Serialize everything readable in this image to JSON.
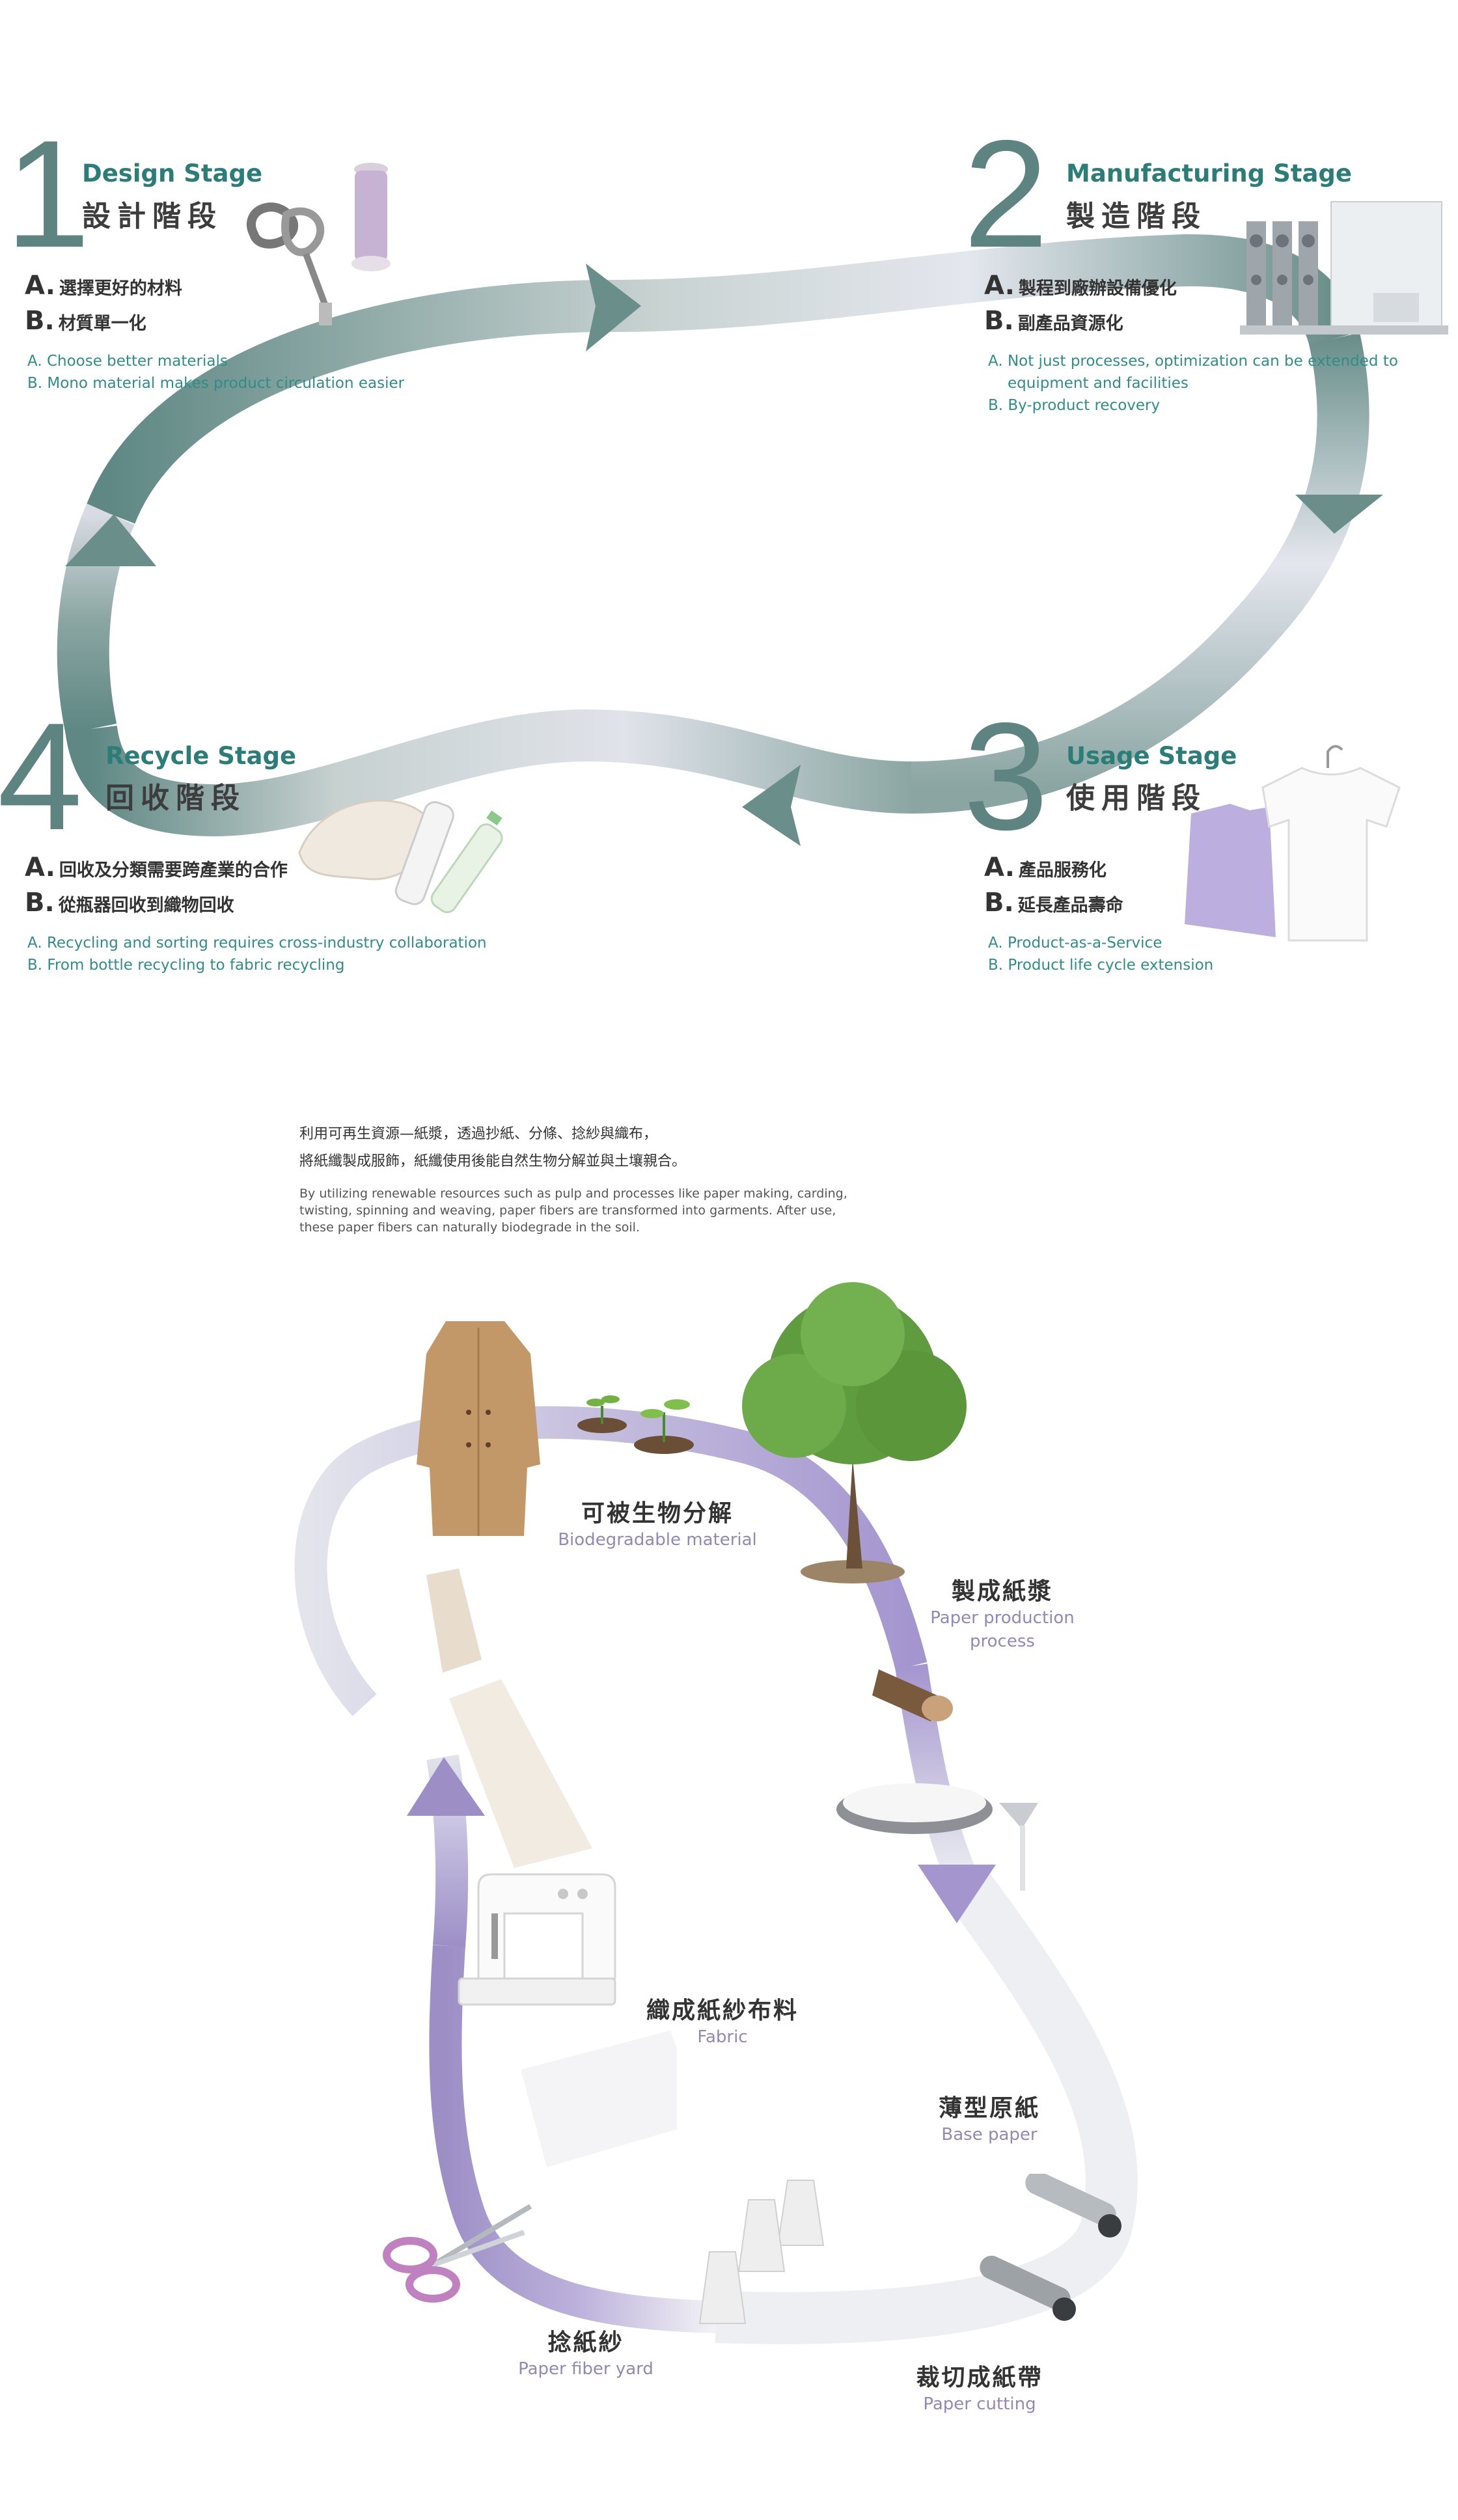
{
  "cycle": {
    "colors": {
      "teal": "#5d8480",
      "teal_text": "#2b7e78",
      "purple": "#9d8fc6",
      "purple_text": "#9388b6"
    },
    "stages": [
      {
        "number": "1",
        "title_en": "Design Stage",
        "title_zh": "設計階段",
        "points_zh": [
          {
            "letter": "A.",
            "text": "選擇更好的材料"
          },
          {
            "letter": "B.",
            "text": "材質單一化"
          }
        ],
        "points_en": [
          "A. Choose better materials",
          "B. Mono material makes product circulation easier"
        ],
        "icon": "thread-spool-and-tape-measure-icon"
      },
      {
        "number": "2",
        "title_en": "Manufacturing Stage",
        "title_zh": "製造階段",
        "points_zh": [
          {
            "letter": "A.",
            "text": "製程到廠辦設備優化"
          },
          {
            "letter": "B.",
            "text": "副產品資源化"
          }
        ],
        "points_en": [
          "A. Not just processes, optimization can be extended to",
          "equipment and facilities",
          "B. By-product recovery"
        ],
        "icon": "industrial-machine-icon"
      },
      {
        "number": "3",
        "title_en": "Usage Stage",
        "title_zh": "使用階段",
        "points_zh": [
          {
            "letter": "A.",
            "text": "產品服務化"
          },
          {
            "letter": "B.",
            "text": "延長產品壽命"
          }
        ],
        "points_en": [
          "A. Product-as-a-Service",
          "B. Product life cycle extension"
        ],
        "icon": "t-shirt-icon"
      },
      {
        "number": "4",
        "title_en": "Recycle Stage",
        "title_zh": "回收階段",
        "points_zh": [
          {
            "letter": "A.",
            "text": "回收及分類需要跨產業的合作"
          },
          {
            "letter": "B.",
            "text": "從瓶器回收到織物回收"
          }
        ],
        "points_en": [
          "A. Recycling and sorting requires cross-industry collaboration",
          "B. From bottle recycling to fabric recycling"
        ],
        "icon": "bottles-and-cloth-icon"
      }
    ]
  },
  "intro": {
    "zh_lines": [
      "利用可再生資源—紙漿，透過抄紙、分條、捻紗與織布，",
      "將紙纖製成服飾，紙纖使用後能自然生物分解並與土壤親合。"
    ],
    "en_lines": [
      "By utilizing renewable resources such as pulp and processes like paper making, carding,",
      "twisting, spinning and weaving, paper fibers are transformed into garments. After use,",
      "these paper fibers can naturally biodegrade in the soil."
    ]
  },
  "paper_cycle": {
    "steps": [
      {
        "zh": "可被生物分解",
        "en": "Biodegradable material",
        "icon": "coat-and-sprout-icon"
      },
      {
        "zh": "製成紙漿",
        "en": "Paper production process",
        "icon": "tree-icon"
      },
      {
        "zh": "薄型原紙",
        "en": "Base paper",
        "icon": "pulp-tray-icon"
      },
      {
        "zh": "裁切成紙帶",
        "en": "Paper cutting",
        "icon": "paper-roller-icon"
      },
      {
        "zh": "捻紙紗",
        "en": "Paper fiber yard",
        "icon": "yarn-cone-icon"
      },
      {
        "zh": "織成紙紗布料",
        "en": "Fabric",
        "icon": "sewing-machine-icon"
      }
    ]
  }
}
